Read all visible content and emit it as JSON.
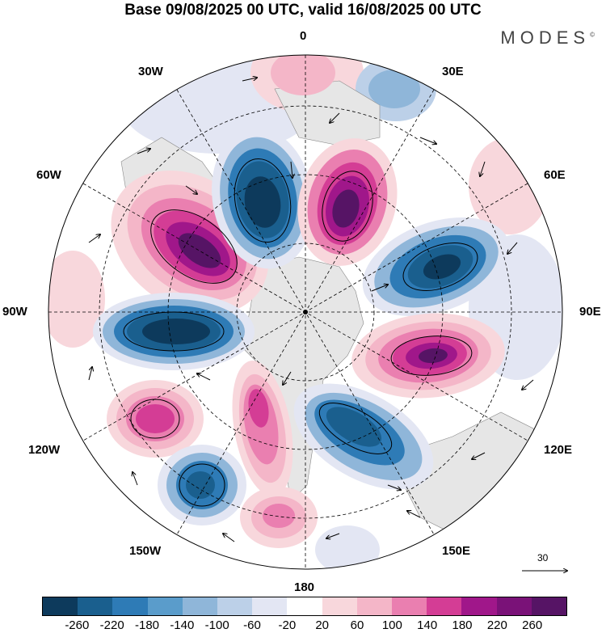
{
  "title": "Base 09/08/2025 00 UTC, valid 16/08/2025 00 UTC",
  "brand": "MODES",
  "brand_mark": "©",
  "longitude_labels": {
    "top": "0",
    "n30e": "30E",
    "n60e": "60E",
    "e90": "90E",
    "s120e": "120E",
    "s150e": "150E",
    "bottom": "180",
    "s150w": "150W",
    "s120w": "120W",
    "w90": "90W",
    "n60w": "60W",
    "n30w": "30W"
  },
  "reference_vector": {
    "label": "30"
  },
  "colorbar": {
    "labels": [
      "-260",
      "-220",
      "-180",
      "-140",
      "-100",
      "-60",
      "-20",
      "20",
      "60",
      "100",
      "140",
      "180",
      "220",
      "260"
    ],
    "colors": [
      "#0d3a5c",
      "#1a5f8e",
      "#2e7bb6",
      "#5a9ccb",
      "#8fb6d9",
      "#bcd0e8",
      "#e3e6f3",
      "#ffffff",
      "#f8d7dc",
      "#f4b6c8",
      "#ea7fb0",
      "#d43d95",
      "#a0178a",
      "#7a1278",
      "#561465"
    ]
  },
  "anomaly_colors": {
    "neg_strong": "#0d3a5c",
    "neg_mid": "#2e7bb6",
    "neg_weak": "#8fb6d9",
    "neg_faint": "#e3e6f3",
    "pos_faint": "#f8d7dc",
    "pos_weak": "#f4b6c8",
    "pos_mid": "#ea7fb0",
    "pos_strong": "#a0178a",
    "pos_max": "#561465",
    "land": "#e6e6e6"
  }
}
